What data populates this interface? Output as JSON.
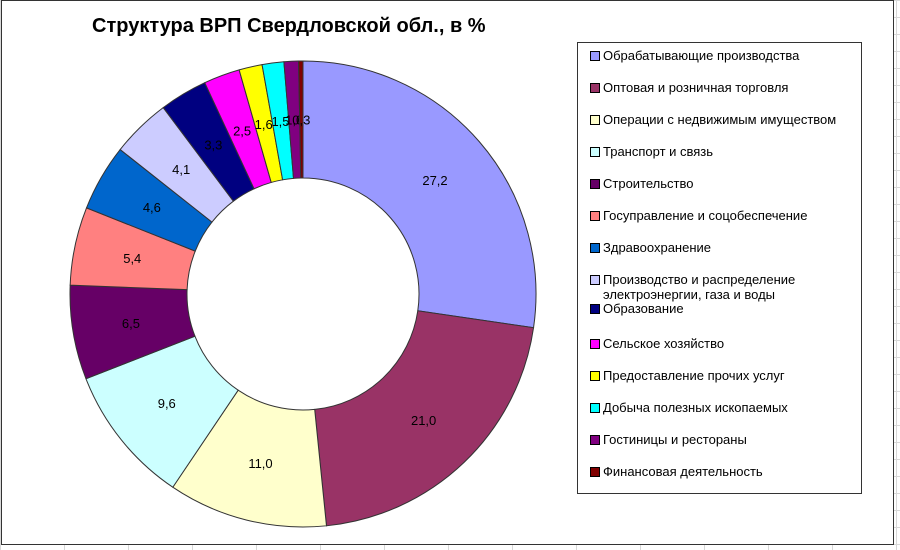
{
  "chart_data": {
    "type": "pie",
    "subtype": "doughnut",
    "title": "Структура ВРП Свердловской обл., в %",
    "categories": [
      "Обрабатывающие производства",
      "Оптовая и розничная торговля",
      "Операции с недвижимым имуществом",
      "Транспорт и связь",
      "Строительство",
      "Госуправление и соцобеспечение",
      "Здравоохранение",
      "Производство и распределение электроэнергии, газа и воды",
      "Образование",
      "Сельское хозяйство",
      "Предоставление прочих услуг",
      "Добыча полезных ископаемых",
      "Гостиницы и рестораны",
      "Финансовая деятельность"
    ],
    "values": [
      27.2,
      21.0,
      11.0,
      9.6,
      6.5,
      5.4,
      4.6,
      4.1,
      3.3,
      2.5,
      1.6,
      1.5,
      1.0,
      0.3
    ],
    "data_labels": [
      "27,2",
      "21,0",
      "11,0",
      "9,6",
      "6,5",
      "5,4",
      "4,6",
      "4,1",
      "3,3",
      "2,5",
      "1,6",
      "1,5",
      "1,0",
      "0,3"
    ],
    "colors": [
      "#9999ff",
      "#993366",
      "#ffffcc",
      "#ccffff",
      "#660066",
      "#ff8080",
      "#0066cc",
      "#ccccff",
      "#000080",
      "#ff00ff",
      "#ffff00",
      "#00ffff",
      "#800080",
      "#800000"
    ],
    "legend_position": "right",
    "grid": false
  },
  "title": "Структура ВРП Свердловской обл., в %",
  "legend": {
    "items": [
      {
        "label": "Обрабатывающие производства",
        "color": "#9999ff"
      },
      {
        "label": "Оптовая и розничная торговля",
        "color": "#993366"
      },
      {
        "label": "Операции с недвижимым имуществом",
        "color": "#ffffcc"
      },
      {
        "label": "Транспорт и связь",
        "color": "#ccffff"
      },
      {
        "label": "Строительство",
        "color": "#660066"
      },
      {
        "label": "Госуправление и соцобеспечение",
        "color": "#ff8080"
      },
      {
        "label": "Здравоохранение",
        "color": "#0066cc"
      },
      {
        "label": "Производство и распределение электроэнергии, газа и воды",
        "color": "#ccccff"
      },
      {
        "label": "Образование",
        "color": "#000080"
      },
      {
        "label": "Сельское хозяйство",
        "color": "#ff00ff"
      },
      {
        "label": "Предоставление прочих услуг",
        "color": "#ffff00"
      },
      {
        "label": "Добыча полезных ископаемых",
        "color": "#00ffff"
      },
      {
        "label": "Гостиницы и рестораны",
        "color": "#800080"
      },
      {
        "label": "Финансовая деятельность",
        "color": "#800000"
      }
    ]
  }
}
